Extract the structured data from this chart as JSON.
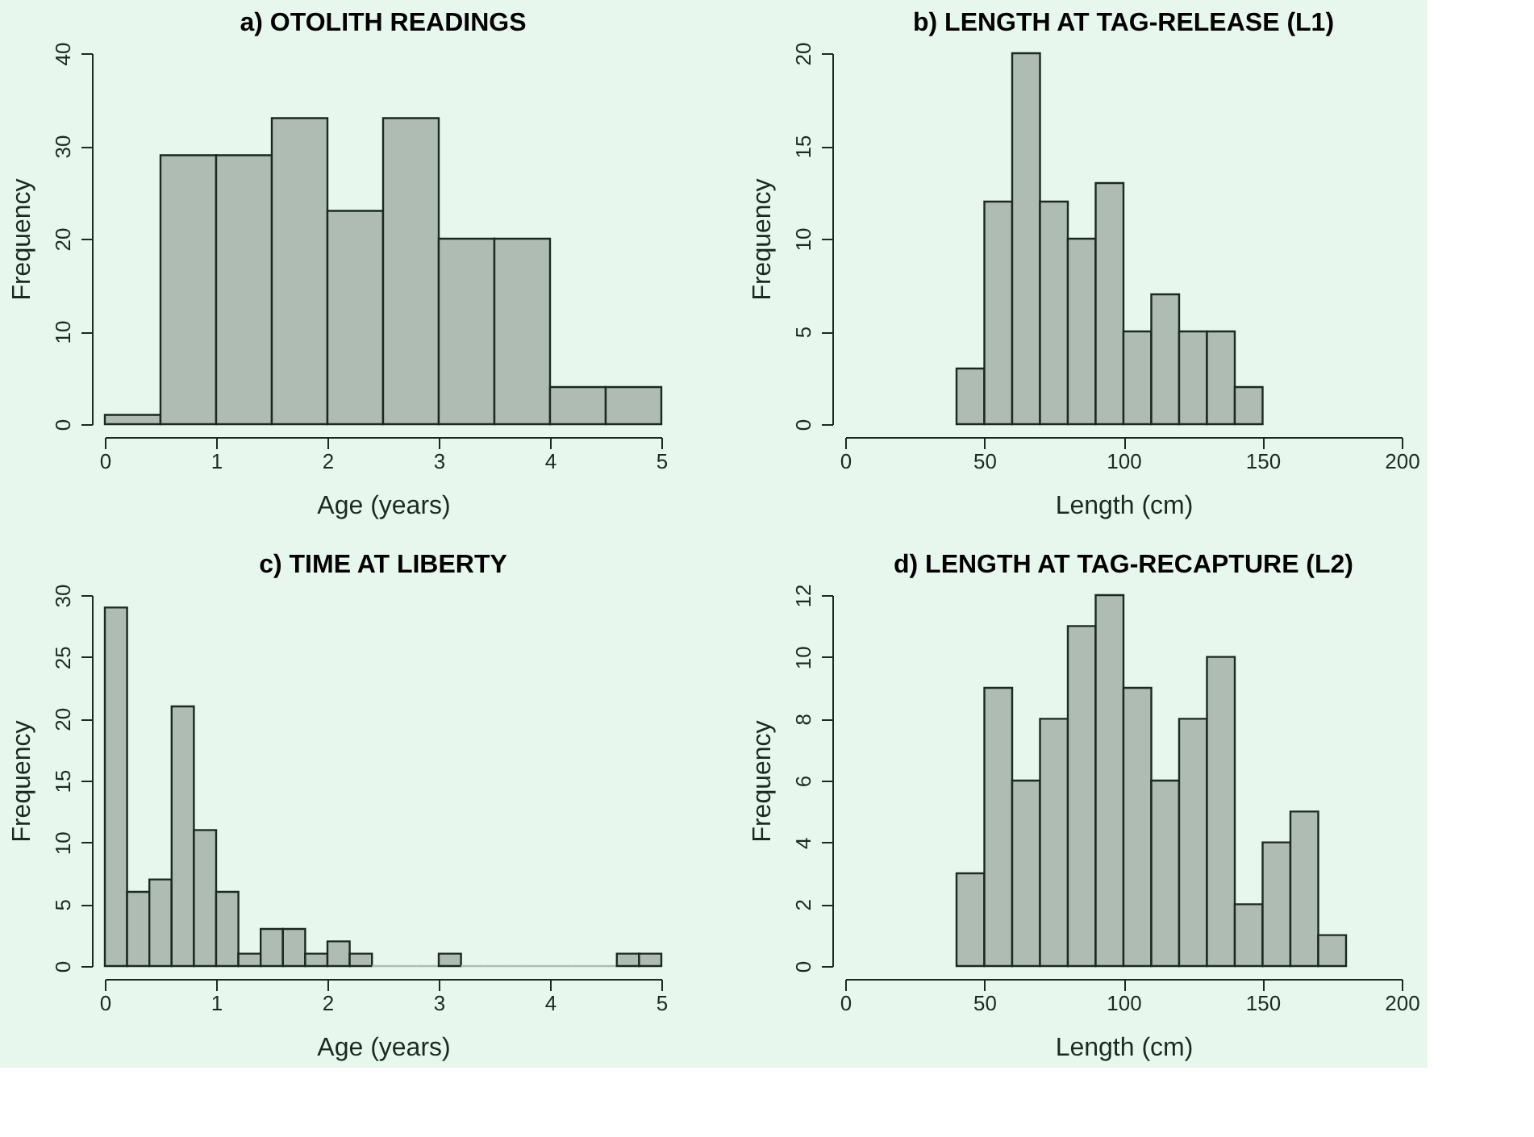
{
  "chart_data": [
    {
      "type": "histogram",
      "title": "a) OTOLITH READINGS",
      "xlabel": "Age (years)",
      "ylabel": "Frequency",
      "color": "#afbcb4",
      "grid": false,
      "bins": [
        0,
        0.5,
        1,
        1.5,
        2,
        2.5,
        3,
        3.5,
        4,
        4.5,
        5
      ],
      "values": [
        1,
        29,
        29,
        33,
        23,
        33,
        20,
        20,
        4,
        4
      ],
      "xlim": [
        0,
        5
      ],
      "xticks": [
        0,
        1,
        2,
        3,
        4,
        5
      ],
      "ylim": [
        0,
        40
      ],
      "yticks": [
        0,
        10,
        20,
        30,
        40
      ]
    },
    {
      "type": "histogram",
      "title": "b) LENGTH AT TAG-RELEASE (L1)",
      "xlabel": "Length (cm)",
      "ylabel": "Frequency",
      "color": "#afbcb4",
      "grid": false,
      "bins": [
        40,
        50,
        60,
        70,
        80,
        90,
        100,
        110,
        120,
        130,
        140,
        150
      ],
      "values": [
        3,
        12,
        20,
        12,
        10,
        13,
        5,
        7,
        5,
        5,
        2
      ],
      "xlim": [
        0,
        200
      ],
      "xticks": [
        0,
        50,
        100,
        150,
        200
      ],
      "ylim": [
        0,
        20
      ],
      "yticks": [
        0,
        5,
        10,
        15,
        20
      ]
    },
    {
      "type": "histogram",
      "title": "c) TIME AT LIBERTY",
      "xlabel": "Age (years)",
      "ylabel": "Frequency",
      "color": "#afbcb4",
      "grid": false,
      "bins": [
        0,
        0.2,
        0.4,
        0.6,
        0.8,
        1,
        1.2,
        1.4,
        1.6,
        1.8,
        2,
        2.2,
        2.4,
        2.6,
        2.8,
        3,
        3.2,
        3.4,
        3.6,
        3.8,
        4,
        4.2,
        4.4,
        4.6,
        4.8,
        5
      ],
      "values": [
        29,
        6,
        7,
        21,
        11,
        6,
        1,
        3,
        3,
        1,
        2,
        1,
        0,
        0,
        0,
        1,
        0,
        0,
        0,
        0,
        0,
        0,
        0,
        1,
        1
      ],
      "xlim": [
        0,
        5
      ],
      "xticks": [
        0,
        1,
        2,
        3,
        4,
        5
      ],
      "ylim": [
        0,
        30
      ],
      "yticks": [
        0,
        5,
        10,
        15,
        20,
        25,
        30
      ]
    },
    {
      "type": "histogram",
      "title": "d) LENGTH AT TAG-RECAPTURE (L2)",
      "xlabel": "Length (cm)",
      "ylabel": "Frequency",
      "color": "#afbcb4",
      "grid": false,
      "bins": [
        40,
        50,
        60,
        70,
        80,
        90,
        100,
        110,
        120,
        130,
        140,
        150,
        160,
        170,
        180
      ],
      "values": [
        3,
        9,
        6,
        8,
        11,
        12,
        9,
        6,
        8,
        10,
        2,
        4,
        5,
        1
      ],
      "xlim": [
        0,
        200
      ],
      "xticks": [
        0,
        50,
        100,
        150,
        200
      ],
      "ylim": [
        0,
        12
      ],
      "yticks": [
        0,
        2,
        4,
        6,
        8,
        10,
        12
      ]
    }
  ]
}
